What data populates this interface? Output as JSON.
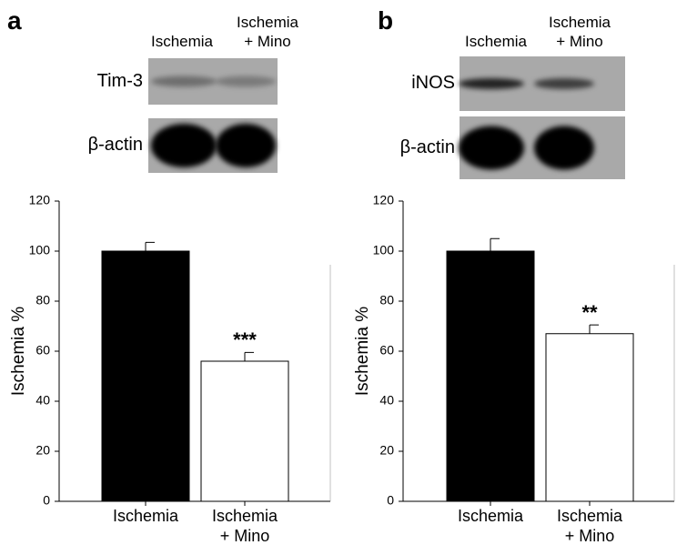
{
  "chart_data": [
    {
      "type": "bar",
      "panel": "a",
      "lanes": [
        "Ischemia",
        "Ischemia\n+ Mino"
      ],
      "blots": [
        "Tim-3",
        "β-actin"
      ],
      "categories": [
        "Ischemia",
        "Ischemia\n+ Mino"
      ],
      "values": [
        100,
        56
      ],
      "errors": [
        3.5,
        3.5
      ],
      "colors": [
        "#000000",
        "#ffffff"
      ],
      "annotations": [
        null,
        "***"
      ],
      "ylabel": "Ischemia %",
      "ylim": [
        0,
        120
      ],
      "yticks": [
        0,
        20,
        40,
        60,
        80,
        100,
        120
      ]
    },
    {
      "type": "bar",
      "panel": "b",
      "lanes": [
        "Ischemia",
        "Ischemia\n+ Mino"
      ],
      "blots": [
        "iNOS",
        "β-actin"
      ],
      "categories": [
        "Ischemia",
        "Ischemia\n+ Mino"
      ],
      "values": [
        100,
        67
      ],
      "errors": [
        5,
        3.5
      ],
      "colors": [
        "#000000",
        "#ffffff"
      ],
      "annotations": [
        null,
        "**"
      ],
      "ylabel": "Ischemia %",
      "ylim": [
        0,
        120
      ],
      "yticks": [
        0,
        20,
        40,
        60,
        80,
        100,
        120
      ]
    }
  ]
}
